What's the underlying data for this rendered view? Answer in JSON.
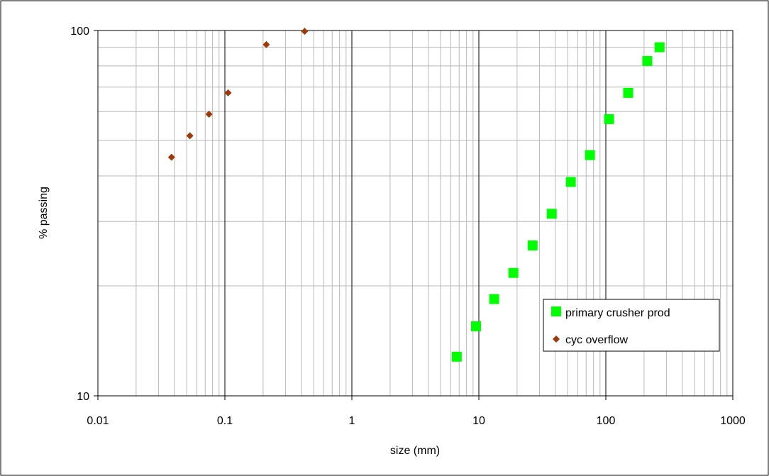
{
  "chart_data": {
    "type": "scatter",
    "title": "",
    "xlabel": "size (mm)",
    "ylabel": "% passing",
    "x_scale": "log",
    "y_scale": "log",
    "xlim": [
      0.01,
      1000
    ],
    "ylim": [
      10,
      100
    ],
    "x_ticks": [
      "0.01",
      "0.1",
      "1",
      "10",
      "100",
      "1000"
    ],
    "y_ticks": [
      "10",
      "100"
    ],
    "grid": true,
    "legend_position": "bottom-right",
    "series": [
      {
        "name": "primary crusher prod",
        "marker": "square",
        "color": "#00ff00",
        "x": [
          6.7,
          9.5,
          13.2,
          18.7,
          26.5,
          37.5,
          53,
          75,
          106,
          150,
          212,
          265
        ],
        "y": [
          12.8,
          15.5,
          18.4,
          21.7,
          25.8,
          31.5,
          38.5,
          45.6,
          57.2,
          67.5,
          82.5,
          90
        ]
      },
      {
        "name": "cyc overflow",
        "marker": "diamond",
        "color": "#a0390a",
        "x": [
          0.038,
          0.053,
          0.075,
          0.106,
          0.212,
          0.425
        ],
        "y": [
          45,
          51.5,
          59,
          67.5,
          91.5,
          99.5
        ]
      }
    ]
  }
}
